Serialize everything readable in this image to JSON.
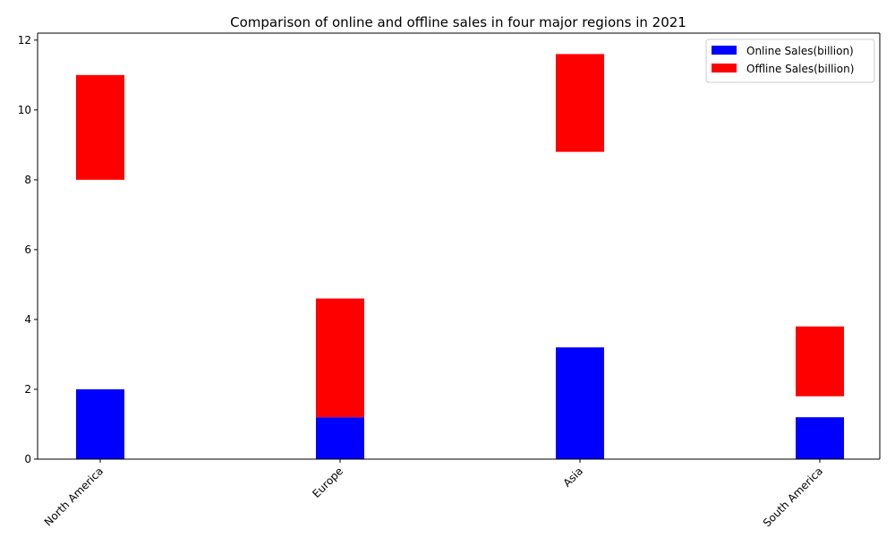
{
  "chart_data": {
    "type": "bar",
    "title": "Comparison of online and offline sales in four major regions in 2021",
    "categories": [
      "North America",
      "Europe",
      "Asia",
      "South America"
    ],
    "series": [
      {
        "name": "Online Sales(billion)",
        "color": "#0000ff",
        "values": [
          2.0,
          1.2,
          3.2,
          1.2
        ],
        "bottoms": [
          0,
          0,
          0,
          0
        ]
      },
      {
        "name": "Offline Sales(billion)",
        "color": "#ff0000",
        "values": [
          3.0,
          3.4,
          2.8,
          2.0
        ],
        "bottoms": [
          8.0,
          1.2,
          8.8,
          1.8
        ]
      }
    ],
    "xlabel": "",
    "ylabel": "",
    "ylim": [
      0,
      12.2
    ],
    "yticks": [
      0,
      2,
      4,
      6,
      8,
      10,
      12
    ],
    "ytick_labels": [
      "0",
      "2",
      "4",
      "6",
      "8",
      "10",
      "12"
    ],
    "grid": false,
    "legend_position": "top-right"
  }
}
